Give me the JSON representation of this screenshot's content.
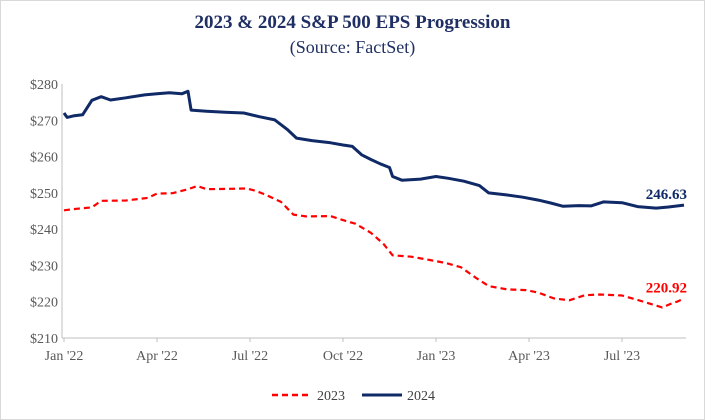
{
  "title": "2023 & 2024 S&P 500 EPS Progression",
  "subtitle": "(Source: FactSet)",
  "chart_data": {
    "type": "line",
    "title": "2023 & 2024 S&P 500 EPS Progression",
    "subtitle": "(Source: FactSet)",
    "ylim": [
      210,
      280
    ],
    "xlim": [
      0,
      20.2
    ],
    "y_ticks": [
      "$210",
      "$220",
      "$230",
      "$240",
      "$250",
      "$260",
      "$270",
      "$280"
    ],
    "y_tick_values": [
      210,
      220,
      230,
      240,
      250,
      260,
      270,
      280
    ],
    "x_ticks": [
      "Jan '22",
      "Apr '22",
      "Jul '22",
      "Oct '22",
      "Jan '23",
      "Apr '23",
      "Jul '23"
    ],
    "x_tick_values": [
      0,
      3,
      6,
      9,
      12,
      15,
      18
    ],
    "x_unit": "months since Jan '22",
    "grid": false,
    "legend_position": "bottom",
    "series": [
      {
        "name": "2023",
        "color": "#ff0000",
        "dash": true,
        "end_label": "220.92",
        "points": [
          [
            0.0,
            245.2
          ],
          [
            0.4,
            245.6
          ],
          [
            0.9,
            246.0
          ],
          [
            1.2,
            247.8
          ],
          [
            2.0,
            247.9
          ],
          [
            2.7,
            248.6
          ],
          [
            3.0,
            249.8
          ],
          [
            3.5,
            249.9
          ],
          [
            4.0,
            251.0
          ],
          [
            4.3,
            251.9
          ],
          [
            4.6,
            251.0
          ],
          [
            5.2,
            251.1
          ],
          [
            5.9,
            251.2
          ],
          [
            6.2,
            250.5
          ],
          [
            6.5,
            249.5
          ],
          [
            7.0,
            247.5
          ],
          [
            7.4,
            244.0
          ],
          [
            7.8,
            243.5
          ],
          [
            8.6,
            243.6
          ],
          [
            9.0,
            242.5
          ],
          [
            9.4,
            241.5
          ],
          [
            9.9,
            239.0
          ],
          [
            10.3,
            236.0
          ],
          [
            10.6,
            232.8
          ],
          [
            11.2,
            232.4
          ],
          [
            11.8,
            231.5
          ],
          [
            12.3,
            230.7
          ],
          [
            12.8,
            229.5
          ],
          [
            13.3,
            226.5
          ],
          [
            13.7,
            224.3
          ],
          [
            14.3,
            223.4
          ],
          [
            14.9,
            223.2
          ],
          [
            15.3,
            222.5
          ],
          [
            15.8,
            220.9
          ],
          [
            16.3,
            220.4
          ],
          [
            16.8,
            221.8
          ],
          [
            17.3,
            222.0
          ],
          [
            18.0,
            221.7
          ],
          [
            18.5,
            220.5
          ],
          [
            19.0,
            219.2
          ],
          [
            19.3,
            218.4
          ],
          [
            19.6,
            219.5
          ],
          [
            19.8,
            220.1
          ],
          [
            20.0,
            220.92
          ]
        ]
      },
      {
        "name": "2024",
        "color": "#0f2a66",
        "dash": false,
        "end_label": "246.63",
        "points": [
          [
            0.0,
            272.0
          ],
          [
            0.1,
            270.8
          ],
          [
            0.3,
            271.2
          ],
          [
            0.6,
            271.5
          ],
          [
            0.9,
            275.5
          ],
          [
            1.2,
            276.5
          ],
          [
            1.5,
            275.6
          ],
          [
            2.0,
            276.2
          ],
          [
            2.6,
            277.0
          ],
          [
            3.0,
            277.3
          ],
          [
            3.4,
            277.6
          ],
          [
            3.8,
            277.3
          ],
          [
            4.0,
            278.0
          ],
          [
            4.1,
            272.8
          ],
          [
            4.6,
            272.5
          ],
          [
            5.2,
            272.2
          ],
          [
            5.8,
            272.0
          ],
          [
            6.3,
            271.0
          ],
          [
            6.8,
            270.1
          ],
          [
            7.2,
            267.5
          ],
          [
            7.5,
            265.1
          ],
          [
            8.0,
            264.4
          ],
          [
            8.6,
            263.8
          ],
          [
            9.0,
            263.2
          ],
          [
            9.3,
            262.8
          ],
          [
            9.6,
            260.5
          ],
          [
            9.9,
            259.2
          ],
          [
            10.2,
            258.0
          ],
          [
            10.5,
            257.0
          ],
          [
            10.6,
            254.5
          ],
          [
            10.9,
            253.5
          ],
          [
            11.5,
            253.8
          ],
          [
            12.0,
            254.5
          ],
          [
            12.4,
            254.0
          ],
          [
            12.9,
            253.2
          ],
          [
            13.4,
            252.0
          ],
          [
            13.7,
            250.0
          ],
          [
            14.3,
            249.4
          ],
          [
            14.8,
            248.8
          ],
          [
            15.3,
            248.0
          ],
          [
            15.7,
            247.2
          ],
          [
            16.1,
            246.3
          ],
          [
            16.6,
            246.5
          ],
          [
            17.0,
            246.4
          ],
          [
            17.4,
            247.5
          ],
          [
            18.0,
            247.3
          ],
          [
            18.5,
            246.2
          ],
          [
            19.1,
            245.8
          ],
          [
            19.5,
            246.1
          ],
          [
            19.8,
            246.4
          ],
          [
            20.0,
            246.63
          ]
        ]
      }
    ]
  }
}
